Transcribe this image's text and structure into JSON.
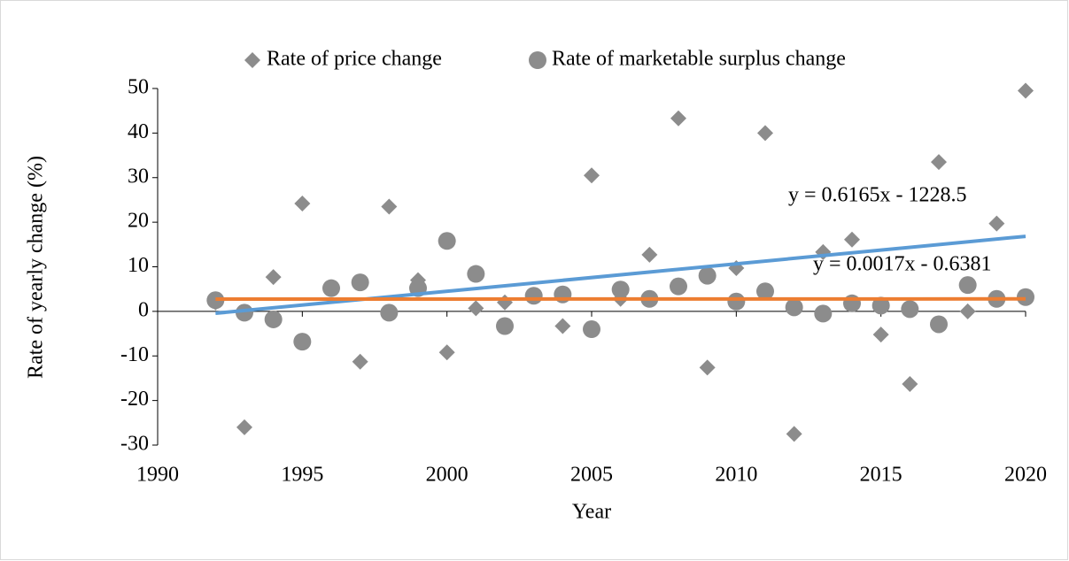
{
  "chart_data": {
    "type": "scatter",
    "x_label": "Year",
    "y_label": "Rate of yearly change (%)",
    "xlim": [
      1990,
      2020
    ],
    "xticks": [
      1990,
      1995,
      2000,
      2005,
      2010,
      2015,
      2020
    ],
    "ylim": [
      -30,
      50
    ],
    "yticks": [
      -30,
      -20,
      -10,
      0,
      10,
      20,
      30,
      40,
      50
    ],
    "legend": "top",
    "x": [
      1992,
      1993,
      1994,
      1995,
      1996,
      1997,
      1998,
      1999,
      2000,
      2001,
      2002,
      2003,
      2004,
      2005,
      2006,
      2007,
      2008,
      2009,
      2010,
      2011,
      2012,
      2013,
      2014,
      2015,
      2016,
      2017,
      2018,
      2019,
      2020
    ],
    "series": [
      {
        "name": "Rate of price change",
        "color": "#8c8c8c",
        "marker": "diamond",
        "values": [
          2,
          -26,
          7.7,
          24.2,
          5,
          -11.3,
          23.5,
          7,
          -9.2,
          0.7,
          2,
          3.5,
          -3.3,
          30.5,
          2.8,
          12.7,
          43.3,
          -12.6,
          9.7,
          40,
          -27.5,
          13.3,
          16.1,
          -5.2,
          -16.3,
          33.5,
          0,
          19.7,
          49.5
        ]
      },
      {
        "name": "Rate of marketable surplus change",
        "color": "#8c8c8c",
        "marker": "circle",
        "values": [
          2.5,
          -0.3,
          -1.8,
          -6.8,
          5.2,
          6.5,
          -0.3,
          5.2,
          15.8,
          8.4,
          -3.3,
          3.5,
          3.8,
          -4,
          4.9,
          2.8,
          5.6,
          8,
          2.2,
          4.5,
          0.9,
          -0.5,
          1.8,
          1.3,
          0.5,
          -2.9,
          5.9,
          2.8,
          3.2
        ]
      }
    ],
    "trendlines": [
      {
        "label": "y = 0.6165x - 1228.5",
        "slope": 0.6165,
        "intercept": -1228.5,
        "x_range": [
          1992,
          2020
        ],
        "color": "#5b9bd5"
      },
      {
        "label": "y = 0.0017x - 0.6381",
        "slope": 0.0017,
        "intercept": -0.6381,
        "x_range": [
          1992,
          2020
        ],
        "color": "#ed7d31"
      }
    ]
  }
}
